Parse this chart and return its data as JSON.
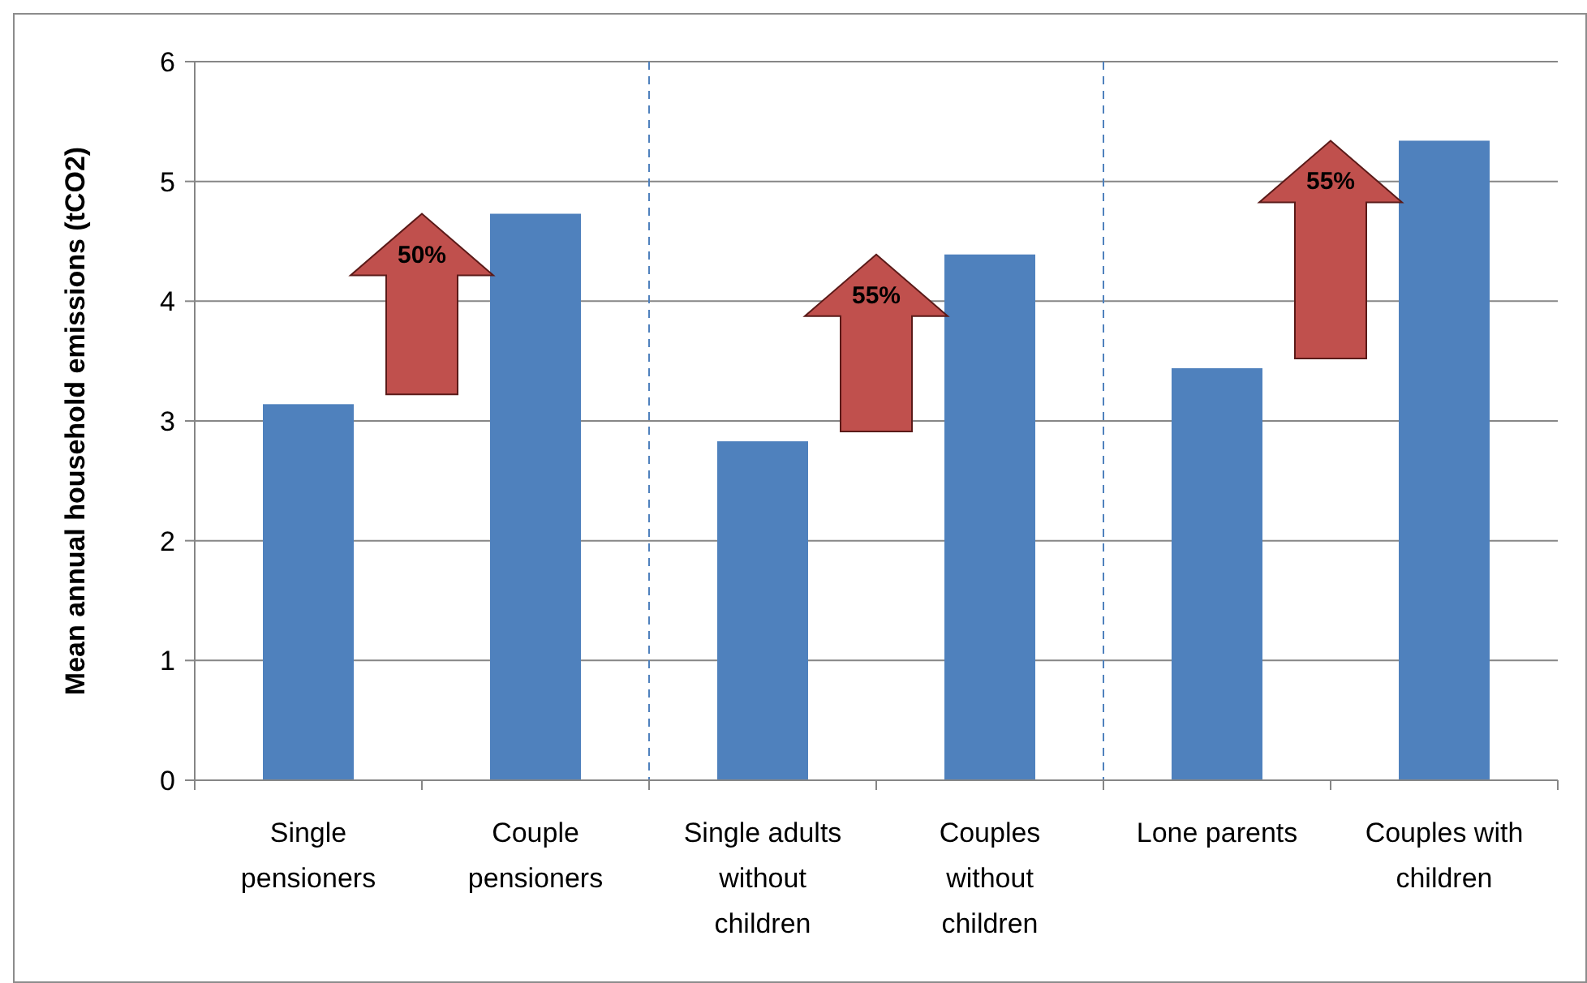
{
  "chart_data": {
    "type": "bar",
    "ylabel": "Mean annual household emissions (tCO2)",
    "categories": [
      "Single pensioners",
      "Couple pensioners",
      "Single adults without children",
      "Couples without children",
      "Lone parents",
      "Couples with children"
    ],
    "values": [
      3.14,
      4.73,
      2.83,
      4.39,
      3.44,
      5.34
    ],
    "color": "#4f81bd",
    "ylim": [
      0,
      6
    ],
    "yticks": [
      0,
      1,
      2,
      3,
      4,
      5,
      6
    ],
    "grid": "y",
    "annotations": [
      "50%",
      "55%",
      "55%"
    ]
  }
}
